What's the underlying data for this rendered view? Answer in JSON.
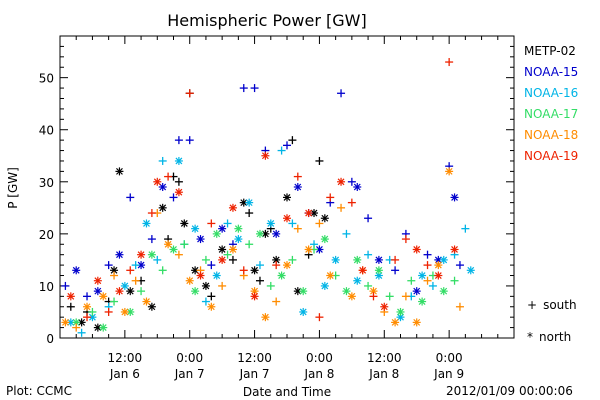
{
  "chart_data": {
    "type": "scatter",
    "title": "Hemispheric Power [GW]",
    "xlabel": "Date and Time",
    "ylabel": "P [GW]",
    "xlim_hours": [
      0,
      84
    ],
    "ylim": [
      0,
      58
    ],
    "yticks": [
      0,
      10,
      20,
      30,
      40,
      50
    ],
    "xticks": [
      {
        "hour": 12,
        "time": "12:00",
        "date": "Jan 6"
      },
      {
        "hour": 24,
        "time": "0:00",
        "date": "Jan 7"
      },
      {
        "hour": 36,
        "time": "12:00",
        "date": "Jan 7"
      },
      {
        "hour": 48,
        "time": "0:00",
        "date": "Jan 8"
      },
      {
        "hour": 60,
        "time": "12:00",
        "date": "Jan 8"
      },
      {
        "hour": 72,
        "time": "0:00",
        "date": "Jan 9"
      }
    ],
    "series": [
      {
        "name": "METP-02",
        "color": "#000000",
        "points": [
          [
            2,
            6,
            "+"
          ],
          [
            4,
            3,
            "*"
          ],
          [
            5,
            5,
            "+"
          ],
          [
            7,
            2,
            "*"
          ],
          [
            9,
            7,
            "+"
          ],
          [
            10,
            13,
            "*"
          ],
          [
            11,
            32,
            "*"
          ],
          [
            13,
            9,
            "*"
          ],
          [
            15,
            11,
            "+"
          ],
          [
            17,
            6,
            "*"
          ],
          [
            19,
            25,
            "*"
          ],
          [
            20,
            19,
            "+"
          ],
          [
            21,
            31,
            "+"
          ],
          [
            22,
            30,
            "+"
          ],
          [
            23,
            22,
            "*"
          ],
          [
            24,
            47,
            "+"
          ],
          [
            25,
            13,
            "*"
          ],
          [
            27,
            10,
            "*"
          ],
          [
            28,
            8,
            "+"
          ],
          [
            30,
            17,
            "*"
          ],
          [
            32,
            15,
            "+"
          ],
          [
            34,
            26,
            "*"
          ],
          [
            35,
            24,
            "+"
          ],
          [
            36,
            13,
            "*"
          ],
          [
            37,
            11,
            "+"
          ],
          [
            38,
            20,
            "*"
          ],
          [
            39,
            21,
            "+"
          ],
          [
            40,
            15,
            "*"
          ],
          [
            42,
            27,
            "*"
          ],
          [
            43,
            38,
            "+"
          ],
          [
            44,
            9,
            "*"
          ],
          [
            46,
            16,
            "+"
          ],
          [
            47,
            24,
            "*"
          ],
          [
            48,
            34,
            "+"
          ],
          [
            49,
            23,
            "*"
          ]
        ]
      },
      {
        "name": "NOAA-15",
        "color": "#0000cc",
        "points": [
          [
            1,
            10,
            "+"
          ],
          [
            3,
            13,
            "*"
          ],
          [
            5,
            8,
            "+"
          ],
          [
            7,
            9,
            "*"
          ],
          [
            9,
            14,
            "+"
          ],
          [
            11,
            16,
            "*"
          ],
          [
            13,
            27,
            "+"
          ],
          [
            15,
            14,
            "*"
          ],
          [
            17,
            19,
            "+"
          ],
          [
            19,
            29,
            "*"
          ],
          [
            21,
            27,
            "+"
          ],
          [
            22,
            38,
            "+"
          ],
          [
            24,
            38,
            "+"
          ],
          [
            26,
            19,
            "*"
          ],
          [
            28,
            14,
            "+"
          ],
          [
            30,
            21,
            "*"
          ],
          [
            32,
            18,
            "+"
          ],
          [
            34,
            48,
            "+"
          ],
          [
            36,
            48,
            "+"
          ],
          [
            38,
            36,
            "+"
          ],
          [
            40,
            20,
            "*"
          ],
          [
            42,
            37,
            "+"
          ],
          [
            44,
            29,
            "*"
          ],
          [
            46,
            24,
            "+"
          ],
          [
            48,
            17,
            "*"
          ],
          [
            50,
            26,
            "+"
          ],
          [
            52,
            47,
            "+"
          ],
          [
            54,
            30,
            "+"
          ],
          [
            55,
            29,
            "*"
          ],
          [
            57,
            23,
            "+"
          ],
          [
            59,
            15,
            "*"
          ],
          [
            62,
            13,
            "+"
          ],
          [
            64,
            20,
            "+"
          ],
          [
            66,
            9,
            "*"
          ],
          [
            68,
            16,
            "+"
          ],
          [
            70,
            15,
            "*"
          ],
          [
            72,
            33,
            "+"
          ],
          [
            73,
            27,
            "*"
          ],
          [
            74,
            14,
            "+"
          ]
        ]
      },
      {
        "name": "NOAA-16",
        "color": "#00b4e6",
        "points": [
          [
            2,
            3,
            "*"
          ],
          [
            4,
            1,
            "+"
          ],
          [
            6,
            4,
            "*"
          ],
          [
            9,
            6,
            "+"
          ],
          [
            12,
            10,
            "*"
          ],
          [
            14,
            14,
            "+"
          ],
          [
            16,
            22,
            "*"
          ],
          [
            18,
            15,
            "+"
          ],
          [
            19,
            34,
            "+"
          ],
          [
            22,
            34,
            "*"
          ],
          [
            23,
            18,
            "+"
          ],
          [
            25,
            21,
            "*"
          ],
          [
            27,
            7,
            "+"
          ],
          [
            29,
            12,
            "*"
          ],
          [
            31,
            22,
            "+"
          ],
          [
            33,
            19,
            "*"
          ],
          [
            35,
            26,
            "*"
          ],
          [
            37,
            14,
            "+"
          ],
          [
            39,
            22,
            "*"
          ],
          [
            41,
            36,
            "+"
          ],
          [
            43,
            22,
            "+"
          ],
          [
            45,
            5,
            "*"
          ],
          [
            47,
            18,
            "+"
          ],
          [
            49,
            10,
            "*"
          ],
          [
            51,
            15,
            "*"
          ],
          [
            53,
            20,
            "+"
          ],
          [
            55,
            11,
            "*"
          ],
          [
            57,
            16,
            "+"
          ],
          [
            59,
            12,
            "*"
          ],
          [
            61,
            15,
            "+"
          ],
          [
            63,
            4,
            "*"
          ],
          [
            65,
            8,
            "+"
          ],
          [
            67,
            12,
            "*"
          ],
          [
            69,
            10,
            "+"
          ],
          [
            71,
            15,
            "*"
          ],
          [
            73,
            16,
            "+"
          ],
          [
            75,
            21,
            "+"
          ],
          [
            76,
            13,
            "*"
          ]
        ]
      },
      {
        "name": "NOAA-17",
        "color": "#33dd66",
        "points": [
          [
            3,
            3,
            "*"
          ],
          [
            6,
            5,
            "+"
          ],
          [
            8,
            2,
            "*"
          ],
          [
            10,
            7,
            "+"
          ],
          [
            13,
            5,
            "*"
          ],
          [
            15,
            9,
            "+"
          ],
          [
            17,
            16,
            "*"
          ],
          [
            19,
            13,
            "+"
          ],
          [
            21,
            17,
            "*"
          ],
          [
            23,
            18,
            "+"
          ],
          [
            25,
            9,
            "*"
          ],
          [
            27,
            15,
            "+"
          ],
          [
            29,
            20,
            "*"
          ],
          [
            31,
            16,
            "+"
          ],
          [
            33,
            21,
            "*"
          ],
          [
            35,
            18,
            "+"
          ],
          [
            37,
            20,
            "*"
          ],
          [
            39,
            10,
            "+"
          ],
          [
            41,
            12,
            "*"
          ],
          [
            43,
            15,
            "+"
          ],
          [
            45,
            9,
            "*"
          ],
          [
            47,
            17,
            "+"
          ],
          [
            49,
            19,
            "*"
          ],
          [
            51,
            12,
            "+"
          ],
          [
            53,
            9,
            "*"
          ],
          [
            55,
            15,
            "*"
          ],
          [
            57,
            10,
            "+"
          ],
          [
            59,
            13,
            "*"
          ],
          [
            61,
            8,
            "+"
          ],
          [
            63,
            5,
            "*"
          ],
          [
            65,
            11,
            "+"
          ],
          [
            67,
            7,
            "*"
          ],
          [
            69,
            12,
            "+"
          ],
          [
            71,
            9,
            "*"
          ],
          [
            73,
            11,
            "+"
          ]
        ]
      },
      {
        "name": "NOAA-18",
        "color": "#ff8c00",
        "points": [
          [
            1,
            3,
            "*"
          ],
          [
            3,
            2,
            "+"
          ],
          [
            5,
            6,
            "*"
          ],
          [
            8,
            8,
            "*"
          ],
          [
            10,
            12,
            "+"
          ],
          [
            12,
            5,
            "*"
          ],
          [
            14,
            11,
            "+"
          ],
          [
            16,
            7,
            "*"
          ],
          [
            18,
            24,
            "+"
          ],
          [
            20,
            18,
            "*"
          ],
          [
            22,
            16,
            "+"
          ],
          [
            24,
            11,
            "*"
          ],
          [
            26,
            13,
            "+"
          ],
          [
            28,
            6,
            "*"
          ],
          [
            30,
            10,
            "+"
          ],
          [
            32,
            17,
            "*"
          ],
          [
            34,
            12,
            "+"
          ],
          [
            36,
            9,
            "*"
          ],
          [
            38,
            4,
            "*"
          ],
          [
            40,
            7,
            "+"
          ],
          [
            42,
            14,
            "*"
          ],
          [
            44,
            21,
            "+"
          ],
          [
            46,
            17,
            "*"
          ],
          [
            48,
            22,
            "+"
          ],
          [
            50,
            12,
            "*"
          ],
          [
            52,
            25,
            "+"
          ],
          [
            54,
            8,
            "*"
          ],
          [
            56,
            13,
            "+"
          ],
          [
            58,
            9,
            "*"
          ],
          [
            60,
            5,
            "+"
          ],
          [
            62,
            3,
            "*"
          ],
          [
            64,
            8,
            "+"
          ],
          [
            66,
            3,
            "*"
          ],
          [
            68,
            11,
            "+"
          ],
          [
            70,
            14,
            "*"
          ],
          [
            72,
            32,
            "*"
          ],
          [
            74,
            6,
            "+"
          ]
        ]
      },
      {
        "name": "NOAA-19",
        "color": "#ee2200",
        "points": [
          [
            2,
            8,
            "*"
          ],
          [
            5,
            4,
            "+"
          ],
          [
            7,
            11,
            "*"
          ],
          [
            9,
            5,
            "+"
          ],
          [
            11,
            9,
            "*"
          ],
          [
            13,
            13,
            "+"
          ],
          [
            15,
            16,
            "*"
          ],
          [
            17,
            24,
            "+"
          ],
          [
            18,
            30,
            "*"
          ],
          [
            20,
            31,
            "+"
          ],
          [
            22,
            28,
            "*"
          ],
          [
            24,
            47,
            "+"
          ],
          [
            26,
            12,
            "*"
          ],
          [
            28,
            22,
            "+"
          ],
          [
            30,
            15,
            "*"
          ],
          [
            32,
            25,
            "*"
          ],
          [
            34,
            13,
            "+"
          ],
          [
            36,
            8,
            "*"
          ],
          [
            38,
            35,
            "*"
          ],
          [
            40,
            14,
            "+"
          ],
          [
            42,
            23,
            "*"
          ],
          [
            44,
            31,
            "+"
          ],
          [
            46,
            24,
            "*"
          ],
          [
            48,
            4,
            "+"
          ],
          [
            50,
            27,
            "+"
          ],
          [
            52,
            30,
            "*"
          ],
          [
            54,
            26,
            "+"
          ],
          [
            56,
            13,
            "*"
          ],
          [
            58,
            8,
            "+"
          ],
          [
            60,
            6,
            "*"
          ],
          [
            62,
            15,
            "+"
          ],
          [
            64,
            19,
            "+"
          ],
          [
            66,
            17,
            "*"
          ],
          [
            68,
            14,
            "+"
          ],
          [
            70,
            12,
            "*"
          ],
          [
            72,
            53,
            "+"
          ],
          [
            73,
            17,
            "*"
          ]
        ]
      }
    ],
    "symbol_legend": [
      {
        "symbol": "+",
        "label": "south"
      },
      {
        "symbol": "*",
        "label": "north"
      }
    ]
  },
  "footer": {
    "left": "Plot: CCMC",
    "right": "2012/01/09 00:00:06"
  }
}
